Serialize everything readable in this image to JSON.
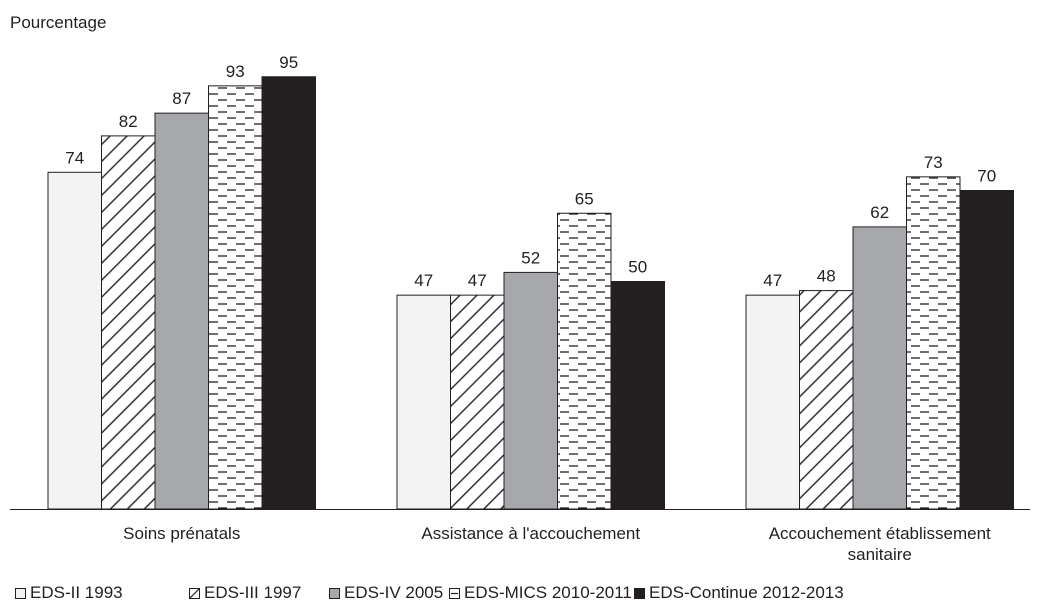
{
  "chart_data": {
    "type": "bar",
    "ylabel": "Pourcentage",
    "xlabel": "",
    "ylim": [
      0,
      100
    ],
    "grid": false,
    "legend_position": "bottom",
    "categories": [
      [
        "Soins prénatals"
      ],
      [
        "Assistance à l'accouchement"
      ],
      [
        "Accouchement établissement",
        "sanitaire"
      ]
    ],
    "series": [
      {
        "name": "EDS-II 1993",
        "values": [
          74,
          47,
          47
        ],
        "fill": "#f2f3f2",
        "pattern": "solid"
      },
      {
        "name": "EDS-III 1997",
        "values": [
          82,
          47,
          48
        ],
        "fill": "#ffffff",
        "pattern": "diagonal"
      },
      {
        "name": "EDS-IV 2005",
        "values": [
          87,
          52,
          62
        ],
        "fill": "#a6a8ab",
        "pattern": "solid"
      },
      {
        "name": "EDS-MICS 2010-2011",
        "values": [
          93,
          65,
          73
        ],
        "fill": "#ffffff",
        "pattern": "dashes"
      },
      {
        "name": "EDS-Continue 2012-2013",
        "values": [
          95,
          50,
          70
        ],
        "fill": "#231f20",
        "pattern": "solid"
      }
    ]
  }
}
